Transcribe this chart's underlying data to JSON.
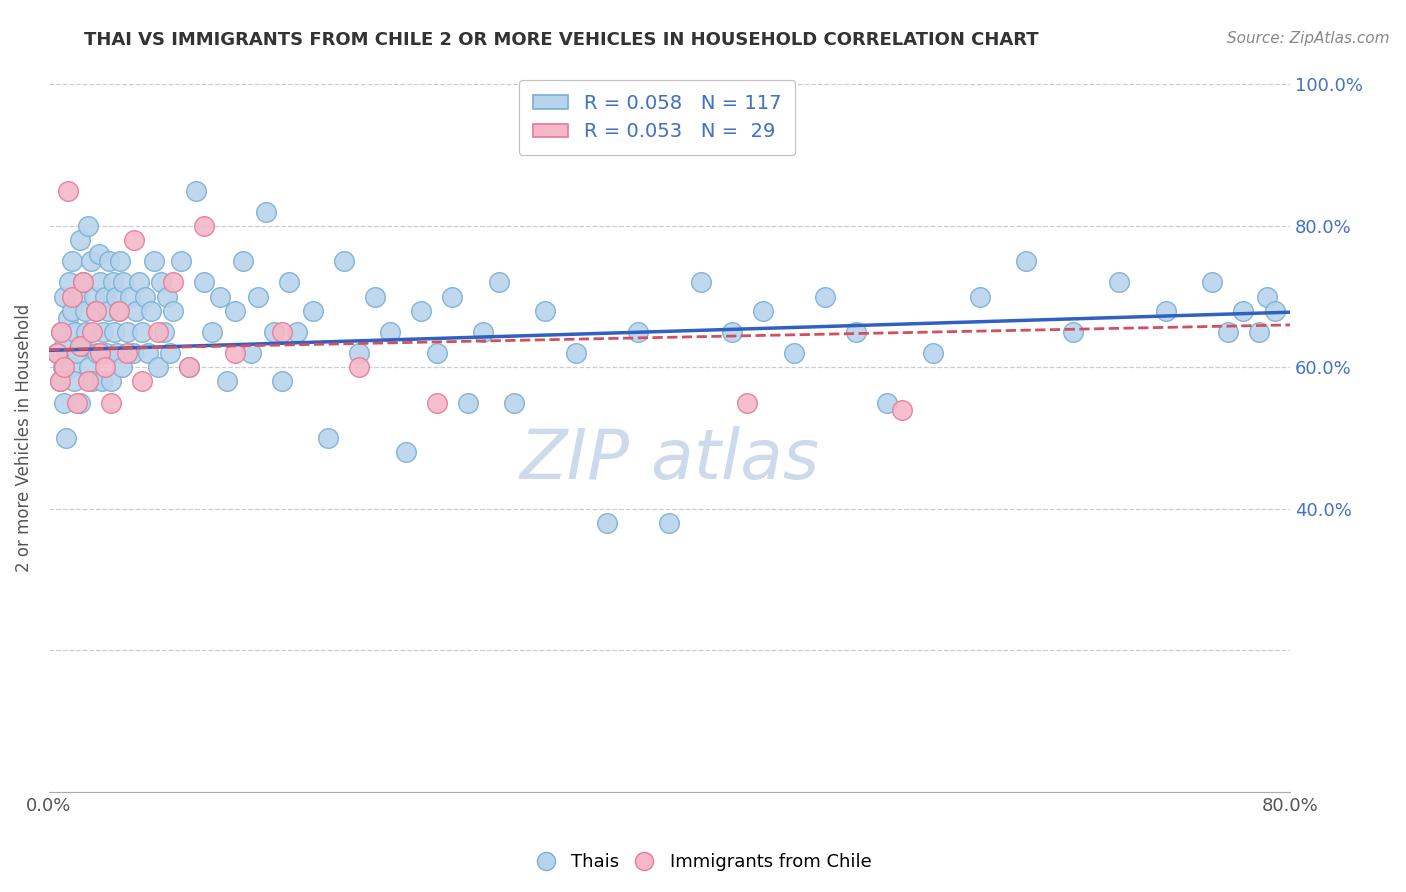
{
  "title": "THAI VS IMMIGRANTS FROM CHILE 2 OR MORE VEHICLES IN HOUSEHOLD CORRELATION CHART",
  "source": "Source: ZipAtlas.com",
  "ylabel": "2 or more Vehicles in Household",
  "xlim": [
    0.0,
    0.8
  ],
  "ylim": [
    0.0,
    1.0
  ],
  "xtick_vals": [
    0.0,
    0.1,
    0.2,
    0.3,
    0.4,
    0.5,
    0.6,
    0.7,
    0.8
  ],
  "xtick_labels": [
    "0.0%",
    "",
    "",
    "",
    "",
    "",
    "",
    "",
    "80.0%"
  ],
  "ytick_vals": [
    0.0,
    0.2,
    0.4,
    0.6,
    0.8,
    1.0
  ],
  "ytick_labels_right": [
    "",
    "",
    "40.0%",
    "60.0%",
    "80.0%",
    "100.0%"
  ],
  "legend_r_labels": [
    "R = 0.058   N = 117",
    "R = 0.053   N =  29"
  ],
  "legend_bottom_labels": [
    "Thais",
    "Immigrants from Chile"
  ],
  "thai_color": "#b8d4ec",
  "chile_color": "#f5b8c8",
  "thai_edge": "#7aafd4",
  "chile_edge": "#e87a96",
  "trend_thai_color": "#3060c0",
  "trend_chile_color": "#d05060",
  "thai_R": 0.058,
  "chile_R": 0.053,
  "thai_N": 117,
  "chile_N": 29,
  "watermark_color": "#ccdaec",
  "label_color": "#4472c4",
  "title_color": "#333333",
  "axis_color": "#555555",
  "grid_color": "#cccccc",
  "thai_x": [
    0.005,
    0.007,
    0.008,
    0.009,
    0.01,
    0.01,
    0.01,
    0.011,
    0.012,
    0.013,
    0.014,
    0.015,
    0.015,
    0.016,
    0.017,
    0.018,
    0.019,
    0.02,
    0.02,
    0.021,
    0.022,
    0.023,
    0.024,
    0.025,
    0.026,
    0.027,
    0.028,
    0.029,
    0.03,
    0.031,
    0.032,
    0.033,
    0.034,
    0.035,
    0.036,
    0.037,
    0.038,
    0.039,
    0.04,
    0.041,
    0.042,
    0.043,
    0.044,
    0.045,
    0.046,
    0.047,
    0.048,
    0.05,
    0.052,
    0.054,
    0.056,
    0.058,
    0.06,
    0.062,
    0.064,
    0.066,
    0.068,
    0.07,
    0.072,
    0.074,
    0.076,
    0.078,
    0.08,
    0.085,
    0.09,
    0.095,
    0.1,
    0.105,
    0.11,
    0.115,
    0.12,
    0.125,
    0.13,
    0.135,
    0.14,
    0.145,
    0.15,
    0.155,
    0.16,
    0.17,
    0.18,
    0.19,
    0.2,
    0.21,
    0.22,
    0.23,
    0.24,
    0.25,
    0.26,
    0.27,
    0.28,
    0.29,
    0.3,
    0.32,
    0.34,
    0.36,
    0.38,
    0.4,
    0.42,
    0.44,
    0.46,
    0.48,
    0.5,
    0.52,
    0.54,
    0.57,
    0.6,
    0.63,
    0.66,
    0.69,
    0.72,
    0.75,
    0.76,
    0.77,
    0.78,
    0.785,
    0.79
  ],
  "thai_y": [
    0.62,
    0.58,
    0.65,
    0.6,
    0.55,
    0.63,
    0.7,
    0.5,
    0.67,
    0.72,
    0.6,
    0.68,
    0.75,
    0.58,
    0.65,
    0.62,
    0.7,
    0.55,
    0.78,
    0.63,
    0.72,
    0.68,
    0.65,
    0.8,
    0.6,
    0.75,
    0.58,
    0.7,
    0.68,
    0.62,
    0.76,
    0.72,
    0.58,
    0.65,
    0.7,
    0.62,
    0.68,
    0.75,
    0.58,
    0.72,
    0.65,
    0.7,
    0.62,
    0.68,
    0.75,
    0.6,
    0.72,
    0.65,
    0.7,
    0.62,
    0.68,
    0.72,
    0.65,
    0.7,
    0.62,
    0.68,
    0.75,
    0.6,
    0.72,
    0.65,
    0.7,
    0.62,
    0.68,
    0.75,
    0.6,
    0.85,
    0.72,
    0.65,
    0.7,
    0.58,
    0.68,
    0.75,
    0.62,
    0.7,
    0.82,
    0.65,
    0.58,
    0.72,
    0.65,
    0.68,
    0.5,
    0.75,
    0.62,
    0.7,
    0.65,
    0.48,
    0.68,
    0.62,
    0.7,
    0.55,
    0.65,
    0.72,
    0.55,
    0.68,
    0.62,
    0.38,
    0.65,
    0.38,
    0.72,
    0.65,
    0.68,
    0.62,
    0.7,
    0.65,
    0.55,
    0.62,
    0.7,
    0.75,
    0.65,
    0.72,
    0.68,
    0.72,
    0.65,
    0.68,
    0.65,
    0.7,
    0.68
  ],
  "chile_x": [
    0.005,
    0.007,
    0.008,
    0.01,
    0.012,
    0.015,
    0.018,
    0.02,
    0.022,
    0.025,
    0.028,
    0.03,
    0.033,
    0.036,
    0.04,
    0.045,
    0.05,
    0.055,
    0.06,
    0.07,
    0.08,
    0.09,
    0.1,
    0.12,
    0.15,
    0.2,
    0.25,
    0.45,
    0.55
  ],
  "chile_y": [
    0.62,
    0.58,
    0.65,
    0.6,
    0.85,
    0.7,
    0.55,
    0.63,
    0.72,
    0.58,
    0.65,
    0.68,
    0.62,
    0.6,
    0.55,
    0.68,
    0.62,
    0.78,
    0.58,
    0.65,
    0.72,
    0.6,
    0.8,
    0.62,
    0.65,
    0.6,
    0.55,
    0.55,
    0.54
  ]
}
